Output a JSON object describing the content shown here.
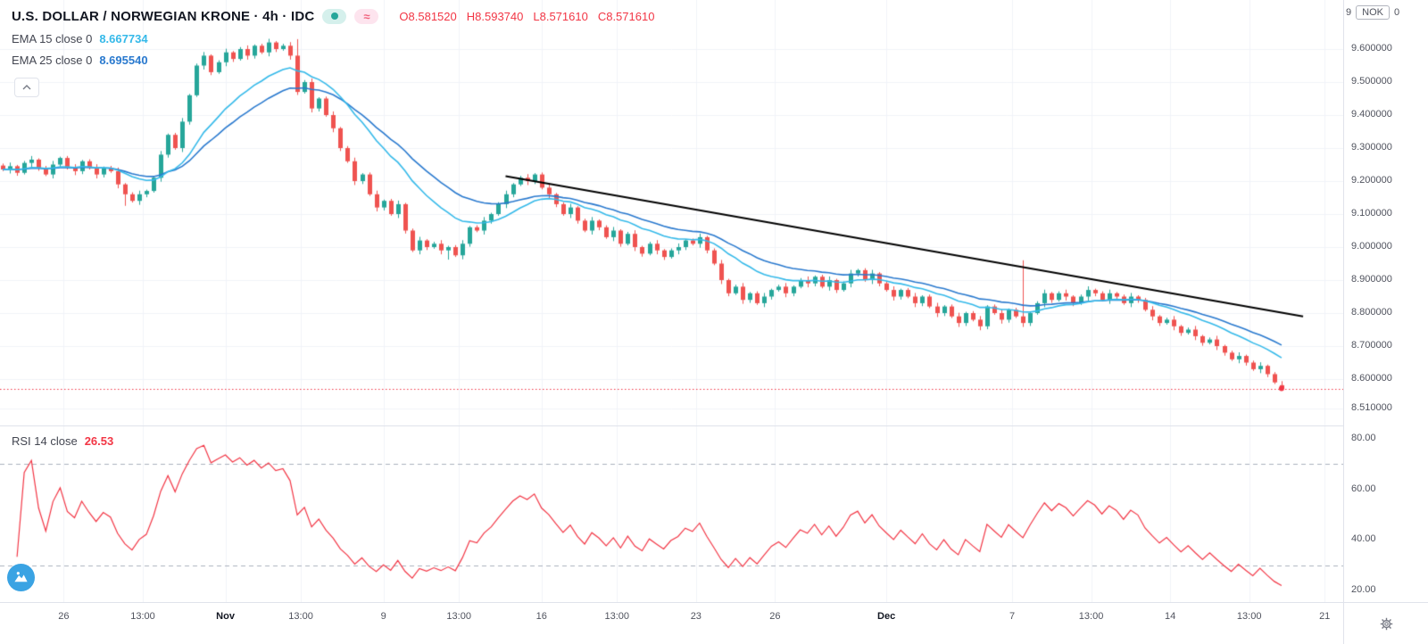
{
  "header": {
    "title": "U.S. DOLLAR / NORWEGIAN KRONE · 4h · IDC",
    "wave_glyph": "≈",
    "ohlc": {
      "open": "O8.581520",
      "high": "H8.593740",
      "low": "L8.571610",
      "close": "C8.571610"
    }
  },
  "legend": {
    "emas": [
      {
        "label": "EMA 15 close 0",
        "value": "8.667734"
      },
      {
        "label": "EMA 25 close 0",
        "value": "8.695540"
      }
    ],
    "rsi": {
      "label": "RSI 14 close",
      "value": "26.53"
    }
  },
  "top_right": {
    "clipped_tick": "9",
    "currency_label": "NOK",
    "clipped_extra": "0"
  },
  "chart_data": {
    "type": "candlestick",
    "title": "U.S. DOLLAR / NORWEGIAN KRONE · 4h · IDC",
    "symbol": "U.S. DOLLAR / NORWEGIAN KRONE",
    "timeframe": "4h",
    "exchange": "IDC",
    "price_ylim": [
      8.51,
      9.65
    ],
    "rsi_ylim": [
      20,
      80
    ],
    "grid": true,
    "up_color": "#26a69a",
    "down_color": "#ef5350",
    "ema15_color": "#35b9e9",
    "ema25_color": "#2979ce",
    "rsi_color": "#f23645",
    "trendline_color": "#000000",
    "current_price": 8.57161,
    "last_candle": {
      "o": 8.58152,
      "h": 8.59374,
      "l": 8.57161,
      "c": 8.57161
    },
    "indicators": {
      "ema15_last": 8.667734,
      "ema25_last": 8.69554,
      "rsi14_last": 26.53
    },
    "price_ticks": [
      9.6,
      9.5,
      9.4,
      9.3,
      9.2,
      9.1,
      9.0,
      8.9,
      8.8,
      8.7,
      8.6,
      8.51
    ],
    "rsi_ticks": [
      80,
      60,
      40,
      20
    ],
    "rsi_bands": [
      70,
      30
    ],
    "time_labels": [
      {
        "label": "26",
        "t": 8.5
      },
      {
        "label": "13:00",
        "t": 19.5
      },
      {
        "label": "Nov",
        "t": 31,
        "major": true
      },
      {
        "label": "13:00",
        "t": 41.5
      },
      {
        "label": "9",
        "t": 53
      },
      {
        "label": "13:00",
        "t": 63.5
      },
      {
        "label": "16",
        "t": 75
      },
      {
        "label": "13:00",
        "t": 85.5
      },
      {
        "label": "23",
        "t": 96.5
      },
      {
        "label": "26",
        "t": 107.5
      },
      {
        "label": "Dec",
        "t": 123,
        "major": true
      },
      {
        "label": "7",
        "t": 140.5
      },
      {
        "label": "13:00",
        "t": 151.5
      },
      {
        "label": "14",
        "t": 162.5
      },
      {
        "label": "13:00",
        "t": 173.5
      },
      {
        "label": "21",
        "t": 184
      }
    ],
    "trendline": {
      "from": {
        "t": 70,
        "price": 9.215
      },
      "to": {
        "t": 181,
        "price": 8.79
      }
    },
    "wick_overrides": {
      "17": {
        "l": 9.125
      },
      "41": {
        "h": 9.63
      },
      "62": {
        "l": 8.962
      },
      "142": {
        "h": 8.96
      }
    },
    "closes": [
      9.235,
      9.245,
      9.225,
      9.255,
      9.265,
      9.24,
      9.22,
      9.25,
      9.27,
      9.24,
      9.23,
      9.26,
      9.24,
      9.22,
      9.24,
      9.23,
      9.19,
      9.16,
      9.14,
      9.16,
      9.17,
      9.21,
      9.28,
      9.34,
      9.3,
      9.38,
      9.46,
      9.55,
      9.58,
      9.53,
      9.56,
      9.59,
      9.57,
      9.6,
      9.58,
      9.61,
      9.59,
      9.62,
      9.6,
      9.61,
      9.58,
      9.47,
      9.5,
      9.42,
      9.45,
      9.4,
      9.36,
      9.3,
      9.26,
      9.2,
      9.22,
      9.16,
      9.12,
      9.14,
      9.1,
      9.13,
      9.05,
      8.99,
      9.02,
      9.0,
      9.01,
      8.99,
      9.0,
      8.975,
      9.01,
      9.06,
      9.05,
      9.08,
      9.1,
      9.13,
      9.16,
      9.19,
      9.21,
      9.2,
      9.22,
      9.18,
      9.16,
      9.13,
      9.1,
      9.12,
      9.08,
      9.05,
      9.08,
      9.06,
      9.03,
      9.05,
      9.01,
      9.04,
      9.0,
      8.98,
      9.01,
      8.99,
      8.97,
      8.99,
      9.0,
      9.02,
      9.01,
      9.03,
      8.99,
      8.95,
      8.9,
      8.86,
      8.88,
      8.84,
      8.86,
      8.83,
      8.85,
      8.87,
      8.88,
      8.86,
      8.88,
      8.9,
      8.89,
      8.91,
      8.88,
      8.9,
      8.87,
      8.89,
      8.92,
      8.93,
      8.9,
      8.92,
      8.89,
      8.87,
      8.85,
      8.87,
      8.85,
      8.83,
      8.85,
      8.82,
      8.8,
      8.82,
      8.79,
      8.77,
      8.8,
      8.78,
      8.76,
      8.82,
      8.8,
      8.78,
      8.81,
      8.79,
      8.77,
      8.8,
      8.83,
      8.86,
      8.84,
      8.86,
      8.85,
      8.83,
      8.85,
      8.87,
      8.86,
      8.84,
      8.86,
      8.85,
      8.83,
      8.85,
      8.84,
      8.81,
      8.79,
      8.77,
      8.78,
      8.76,
      8.74,
      8.75,
      8.73,
      8.71,
      8.72,
      8.7,
      8.68,
      8.66,
      8.67,
      8.65,
      8.63,
      8.64,
      8.615,
      8.59,
      8.5716
    ]
  }
}
